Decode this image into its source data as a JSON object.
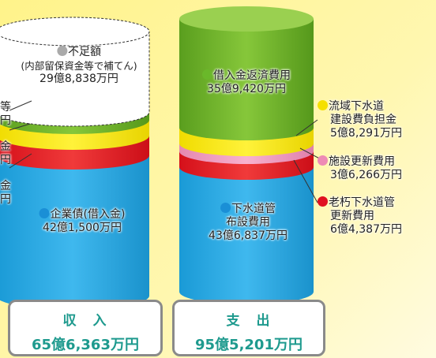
{
  "income": {
    "heading": "収　入",
    "total": "65億6,363万円",
    "shortfall": {
      "label": "不足額",
      "note": "(内部留保資金等で補てん)",
      "amount": "29億8,838万円"
    },
    "items": [
      {
        "label": "企業債(借入金)",
        "amount": "42億1,500万円"
      }
    ],
    "cut_labels": [
      "等",
      "円",
      "金",
      "円",
      "金",
      "円"
    ]
  },
  "expense": {
    "heading": "支　出",
    "total": "95億5,201万円",
    "items": [
      {
        "label": "借入金返済費用",
        "amount": "35億9,420万円"
      },
      {
        "label": "流域下水道",
        "label2": "建設費負担金",
        "amount": "5億8,291万円"
      },
      {
        "label": "施設更新費用",
        "amount": "3億6,266万円"
      },
      {
        "label": "老朽下水道管",
        "label2": "更新費用",
        "amount": "6億4,387万円"
      },
      {
        "label": "下水道管",
        "label2": "布設費用",
        "amount": "43億6,837万円"
      }
    ]
  }
}
